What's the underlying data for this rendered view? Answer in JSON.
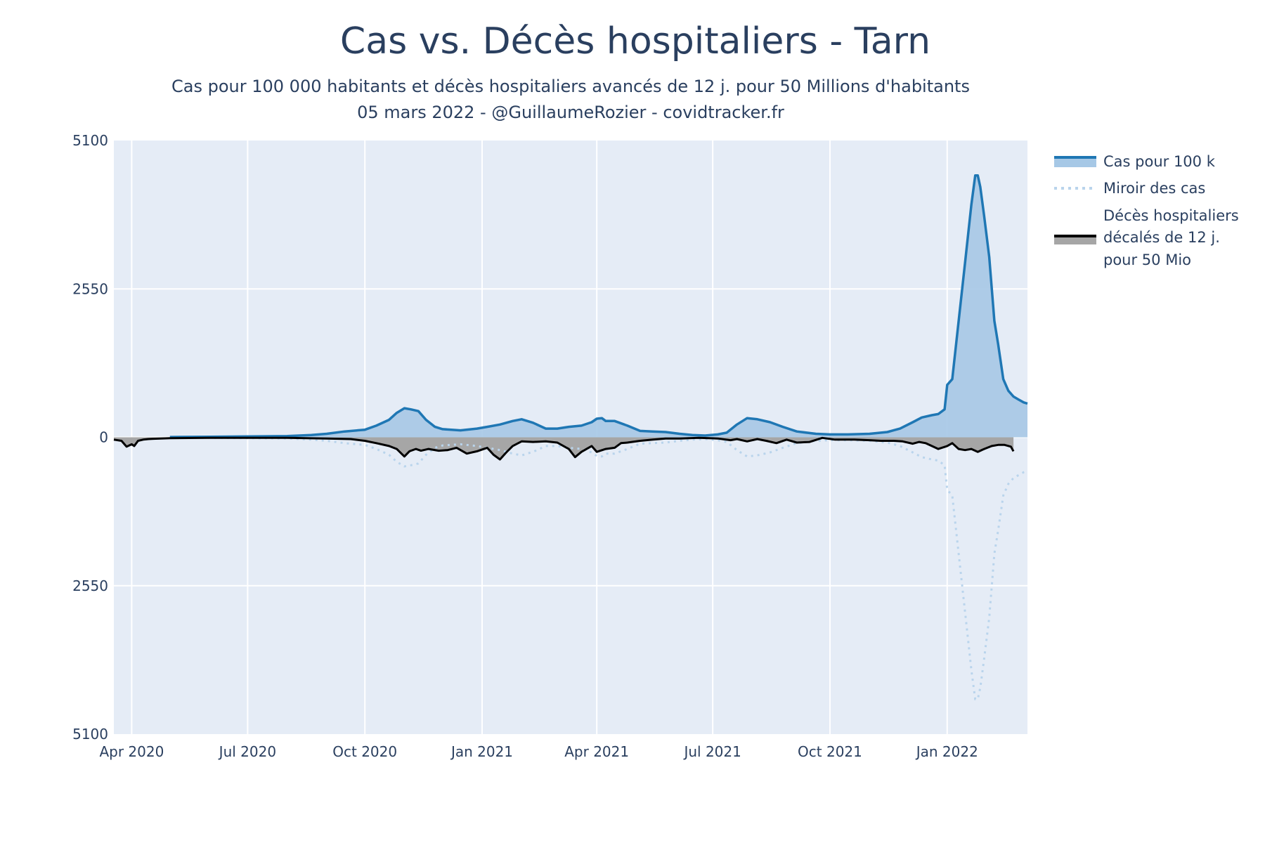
{
  "colors": {
    "plot_bg": "#e5ecf6",
    "grid": "#ffffff",
    "cases_line": "#1f77b4",
    "cases_fill": "#a6c8e6",
    "mirror": "#b9d4ec",
    "deaths_line": "#000000",
    "deaths_fill": "#a6a6a6",
    "text": "#2a3f5f"
  },
  "chart_data": {
    "type": "area",
    "title": "Cas vs. Décès hospitaliers - Tarn",
    "subtitle_lines": [
      "Cas pour 100 000 habitants et décès hospitaliers avancés de 12 j. pour 50 Millions d'habitants",
      "05 mars 2022 - @GuillaumeRozier - covidtracker.fr"
    ],
    "x_range": [
      "2020-03-18",
      "2022-03-05"
    ],
    "ylim": [
      -5100,
      5100
    ],
    "y_ticks": [
      {
        "value": 5100,
        "label": "5100"
      },
      {
        "value": 2550,
        "label": "2550"
      },
      {
        "value": 0,
        "label": "0"
      },
      {
        "value": -2550,
        "label": "2550"
      },
      {
        "value": -5100,
        "label": "5100"
      }
    ],
    "x_ticks": [
      {
        "date": "2020-04-01",
        "label": "Apr 2020"
      },
      {
        "date": "2020-07-01",
        "label": "Jul 2020"
      },
      {
        "date": "2020-10-01",
        "label": "Oct 2020"
      },
      {
        "date": "2021-01-01",
        "label": "Jan 2021"
      },
      {
        "date": "2021-04-01",
        "label": "Apr 2021"
      },
      {
        "date": "2021-07-01",
        "label": "Jul 2021"
      },
      {
        "date": "2021-10-01",
        "label": "Oct 2021"
      },
      {
        "date": "2022-01-01",
        "label": "Jan 2022"
      }
    ],
    "grid": true,
    "legend_position": "top-right",
    "series": [
      {
        "name": "Cas pour 100 k",
        "style": "line-filled",
        "x": [
          "2020-05-01",
          "2020-06-01",
          "2020-07-01",
          "2020-08-01",
          "2020-08-20",
          "2020-09-01",
          "2020-09-15",
          "2020-10-01",
          "2020-10-10",
          "2020-10-20",
          "2020-10-26",
          "2020-11-01",
          "2020-11-06",
          "2020-11-12",
          "2020-11-18",
          "2020-11-25",
          "2020-12-01",
          "2020-12-15",
          "2020-12-28",
          "2021-01-05",
          "2021-01-15",
          "2021-01-25",
          "2021-02-01",
          "2021-02-10",
          "2021-02-20",
          "2021-03-01",
          "2021-03-10",
          "2021-03-20",
          "2021-03-28",
          "2021-04-01",
          "2021-04-05",
          "2021-04-08",
          "2021-04-15",
          "2021-04-25",
          "2021-05-05",
          "2021-05-15",
          "2021-05-25",
          "2021-06-05",
          "2021-06-15",
          "2021-06-25",
          "2021-07-05",
          "2021-07-12",
          "2021-07-20",
          "2021-07-28",
          "2021-08-05",
          "2021-08-15",
          "2021-08-25",
          "2021-09-05",
          "2021-09-20",
          "2021-10-01",
          "2021-10-15",
          "2021-11-01",
          "2021-11-15",
          "2021-11-25",
          "2021-12-05",
          "2021-12-12",
          "2021-12-20",
          "2021-12-25",
          "2021-12-30",
          "2022-01-01",
          "2022-01-05",
          "2022-01-10",
          "2022-01-15",
          "2022-01-20",
          "2022-01-23",
          "2022-01-25",
          "2022-01-27",
          "2022-01-30",
          "2022-02-03",
          "2022-02-07",
          "2022-02-10",
          "2022-02-14",
          "2022-02-18",
          "2022-02-22",
          "2022-02-26",
          "2022-03-02",
          "2022-03-05"
        ],
        "values": [
          5,
          10,
          15,
          20,
          40,
          60,
          100,
          130,
          200,
          300,
          420,
          500,
          480,
          450,
          300,
          180,
          140,
          120,
          150,
          180,
          220,
          280,
          310,
          250,
          150,
          150,
          180,
          200,
          260,
          320,
          330,
          280,
          280,
          200,
          110,
          100,
          90,
          60,
          40,
          30,
          50,
          80,
          220,
          330,
          310,
          260,
          180,
          100,
          60,
          50,
          50,
          60,
          90,
          150,
          260,
          340,
          380,
          400,
          480,
          900,
          1000,
          2000,
          3000,
          4000,
          4500,
          4500,
          4300,
          3800,
          3100,
          2000,
          1600,
          1000,
          800,
          700,
          650,
          600,
          580
        ]
      },
      {
        "name": "Miroir des cas",
        "style": "dotted-mirror",
        "x": [
          "2020-05-01",
          "2020-06-01",
          "2020-07-01",
          "2020-08-01",
          "2020-08-20",
          "2020-09-01",
          "2020-09-15",
          "2020-10-01",
          "2020-10-10",
          "2020-10-20",
          "2020-10-26",
          "2020-11-01",
          "2020-11-06",
          "2020-11-12",
          "2020-11-18",
          "2020-11-25",
          "2020-12-01",
          "2020-12-15",
          "2020-12-28",
          "2021-01-05",
          "2021-01-15",
          "2021-01-25",
          "2021-02-01",
          "2021-02-10",
          "2021-02-20",
          "2021-03-01",
          "2021-03-10",
          "2021-03-20",
          "2021-03-28",
          "2021-04-01",
          "2021-04-05",
          "2021-04-08",
          "2021-04-15",
          "2021-04-25",
          "2021-05-05",
          "2021-05-15",
          "2021-05-25",
          "2021-06-05",
          "2021-06-15",
          "2021-06-25",
          "2021-07-05",
          "2021-07-12",
          "2021-07-20",
          "2021-07-28",
          "2021-08-05",
          "2021-08-15",
          "2021-08-25",
          "2021-09-05",
          "2021-09-20",
          "2021-10-01",
          "2021-10-15",
          "2021-11-01",
          "2021-11-15",
          "2021-11-25",
          "2021-12-05",
          "2021-12-12",
          "2021-12-20",
          "2021-12-25",
          "2021-12-30",
          "2022-01-01",
          "2022-01-05",
          "2022-01-10",
          "2022-01-15",
          "2022-01-20",
          "2022-01-23",
          "2022-01-25",
          "2022-01-27",
          "2022-01-30",
          "2022-02-03",
          "2022-02-07",
          "2022-02-10",
          "2022-02-14",
          "2022-02-18",
          "2022-02-22",
          "2022-02-26",
          "2022-03-02",
          "2022-03-05"
        ],
        "values": [
          -5,
          -10,
          -15,
          -20,
          -40,
          -60,
          -100,
          -130,
          -200,
          -300,
          -420,
          -500,
          -480,
          -450,
          -300,
          -180,
          -140,
          -120,
          -150,
          -180,
          -220,
          -280,
          -310,
          -250,
          -150,
          -150,
          -180,
          -200,
          -260,
          -320,
          -330,
          -280,
          -280,
          -200,
          -110,
          -100,
          -90,
          -60,
          -40,
          -30,
          -50,
          -80,
          -220,
          -330,
          -310,
          -260,
          -180,
          -100,
          -60,
          -50,
          -50,
          -60,
          -90,
          -150,
          -260,
          -340,
          -380,
          -400,
          -480,
          -900,
          -1000,
          -2000,
          -3000,
          -4000,
          -4500,
          -4500,
          -4300,
          -3800,
          -3100,
          -2000,
          -1600,
          -1000,
          -800,
          -700,
          -650,
          -600,
          -580
        ]
      },
      {
        "name": "Décès hospitaliers décalés de 12 j. pour 50 Mio",
        "legend_lines": [
          "Décès hospitaliers",
          "décalés de 12 j.",
          "pour 50 Mio"
        ],
        "style": "line-filled",
        "x": [
          "2020-03-18",
          "2020-03-24",
          "2020-03-28",
          "2020-04-01",
          "2020-04-03",
          "2020-04-06",
          "2020-04-10",
          "2020-04-14",
          "2020-04-18",
          "2020-05-01",
          "2020-06-01",
          "2020-07-01",
          "2020-08-01",
          "2020-09-01",
          "2020-09-20",
          "2020-10-01",
          "2020-10-10",
          "2020-10-20",
          "2020-10-26",
          "2020-11-01",
          "2020-11-05",
          "2020-11-10",
          "2020-11-14",
          "2020-11-20",
          "2020-11-28",
          "2020-12-05",
          "2020-12-12",
          "2020-12-20",
          "2020-12-28",
          "2021-01-05",
          "2021-01-10",
          "2021-01-15",
          "2021-01-20",
          "2021-01-25",
          "2021-02-01",
          "2021-02-10",
          "2021-02-20",
          "2021-03-01",
          "2021-03-10",
          "2021-03-15",
          "2021-03-20",
          "2021-03-28",
          "2021-04-01",
          "2021-04-08",
          "2021-04-15",
          "2021-04-20",
          "2021-04-25",
          "2021-05-05",
          "2021-05-15",
          "2021-05-25",
          "2021-06-05",
          "2021-06-20",
          "2021-07-05",
          "2021-07-15",
          "2021-07-20",
          "2021-07-28",
          "2021-08-05",
          "2021-08-12",
          "2021-08-20",
          "2021-08-28",
          "2021-09-05",
          "2021-09-15",
          "2021-09-25",
          "2021-10-05",
          "2021-10-20",
          "2021-11-01",
          "2021-11-10",
          "2021-11-20",
          "2021-11-27",
          "2021-12-05",
          "2021-12-10",
          "2021-12-15",
          "2021-12-20",
          "2021-12-25",
          "2022-01-01",
          "2022-01-05",
          "2022-01-10",
          "2022-01-15",
          "2022-01-20",
          "2022-01-25",
          "2022-01-30",
          "2022-02-05",
          "2022-02-10",
          "2022-02-15",
          "2022-02-20",
          "2022-02-22"
        ],
        "values": [
          -40,
          -60,
          -160,
          -120,
          -150,
          -60,
          -40,
          -30,
          -25,
          -15,
          -10,
          -10,
          -10,
          -20,
          -30,
          -60,
          -100,
          -150,
          -200,
          -330,
          -240,
          -200,
          -230,
          -200,
          -230,
          -220,
          -180,
          -280,
          -240,
          -180,
          -300,
          -380,
          -260,
          -150,
          -70,
          -80,
          -70,
          -90,
          -200,
          -340,
          -250,
          -150,
          -250,
          -200,
          -180,
          -100,
          -90,
          -60,
          -40,
          -20,
          -20,
          -10,
          -20,
          -50,
          -30,
          -70,
          -30,
          -60,
          -100,
          -40,
          -90,
          -80,
          -10,
          -40,
          -40,
          -50,
          -60,
          -60,
          -70,
          -110,
          -80,
          -100,
          -150,
          -200,
          -150,
          -100,
          -200,
          -220,
          -200,
          -250,
          -200,
          -150,
          -130,
          -130,
          -160,
          -240
        ]
      }
    ]
  }
}
